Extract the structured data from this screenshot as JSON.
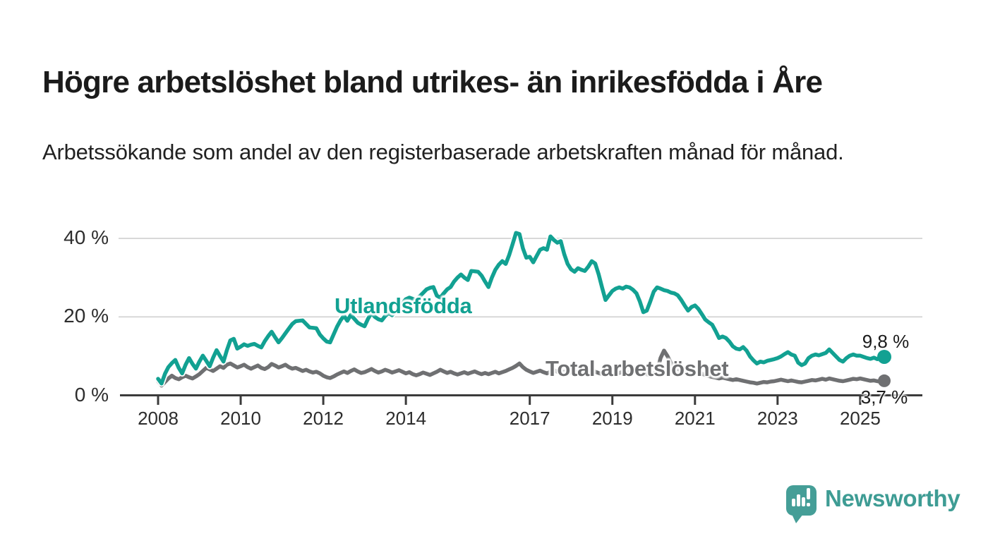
{
  "header": {
    "title": "Högre arbetslöshet bland utrikes- än inrikesfödda i Åre",
    "subtitle": "Arbetssökande som andel av den registerbaserade arbetskraften månad för månad."
  },
  "colors": {
    "accent_teal": "#12a192",
    "line_gray": "#6f7072",
    "grid": "#d8d8d8",
    "axis": "#3b3b3b",
    "tick_text": "#2d2d2d",
    "value_text": "#1a1a1a",
    "brand_teal": "#3e9c94",
    "badge_teal": "#459e97"
  },
  "chart_data": {
    "type": "line",
    "unit": "%",
    "x_domain": {
      "start": "2008-01",
      "end": "2025-08",
      "interval": "monthly"
    },
    "x_ticks": [
      2008,
      2010,
      2012,
      2014,
      2017,
      2019,
      2021,
      2023,
      2025
    ],
    "y_ticks": [
      {
        "value": 0,
        "label": "0 %"
      },
      {
        "value": 20,
        "label": "20 %"
      },
      {
        "value": 40,
        "label": "40 %"
      }
    ],
    "ylim": [
      0,
      44
    ],
    "grid": "horizontal",
    "legend_position": "inline-labels",
    "series": [
      {
        "name": "Utlandsfödda",
        "color": "#12a192",
        "end_label": "9,8 %",
        "last_value": 9.8,
        "values": [
          4.2,
          3.0,
          5.5,
          7.2,
          8.2,
          9.0,
          7.0,
          5.6,
          7.8,
          9.5,
          8.0,
          6.8,
          8.6,
          10.1,
          8.8,
          7.4,
          9.6,
          11.5,
          10.0,
          8.6,
          11.5,
          14.0,
          14.4,
          11.9,
          12.4,
          13.0,
          12.6,
          12.9,
          13.1,
          12.6,
          12.2,
          13.8,
          15.1,
          16.2,
          14.8,
          13.5,
          14.6,
          15.8,
          17.0,
          18.2,
          18.9,
          19.0,
          19.1,
          18.2,
          17.3,
          17.2,
          17.1,
          15.5,
          14.5,
          13.7,
          13.5,
          15.5,
          17.5,
          19.1,
          20.3,
          19.0,
          20.5,
          19.5,
          18.5,
          18.0,
          17.6,
          19.5,
          21.0,
          20.0,
          19.4,
          19.1,
          20.2,
          21.0,
          20.4,
          21.6,
          22.5,
          23.5,
          24.5,
          24.9,
          24.6,
          24.3,
          25.2,
          26.1,
          27.0,
          27.4,
          27.6,
          25.4,
          24.9,
          26.0,
          27.0,
          27.6,
          29.0,
          30.0,
          30.8,
          30.0,
          29.4,
          31.7,
          31.6,
          31.5,
          30.5,
          29.0,
          27.6,
          30.0,
          32.0,
          33.3,
          34.2,
          33.5,
          35.7,
          38.5,
          41.4,
          41.1,
          37.5,
          35.1,
          35.3,
          33.9,
          35.5,
          37.1,
          37.5,
          37.1,
          40.5,
          39.6,
          38.9,
          39.3,
          36.0,
          33.5,
          32.1,
          31.5,
          32.4,
          32.0,
          31.7,
          32.8,
          34.2,
          33.6,
          30.9,
          27.5,
          24.3,
          25.5,
          26.6,
          27.2,
          27.5,
          27.2,
          27.7,
          27.5,
          26.9,
          26.0,
          23.9,
          21.2,
          21.6,
          23.9,
          26.4,
          27.5,
          27.2,
          26.8,
          26.6,
          26.2,
          26.0,
          25.5,
          24.3,
          22.9,
          21.6,
          22.5,
          22.9,
          22.0,
          20.7,
          19.3,
          18.6,
          18.0,
          16.4,
          14.6,
          15.0,
          14.6,
          13.7,
          12.5,
          11.9,
          11.7,
          12.3,
          11.4,
          9.9,
          8.9,
          8.1,
          8.6,
          8.4,
          8.8,
          9.0,
          9.2,
          9.5,
          9.9,
          10.5,
          11.0,
          10.4,
          10.1,
          8.3,
          7.7,
          8.1,
          9.5,
          10.1,
          10.4,
          10.2,
          10.5,
          10.8,
          11.7,
          10.8,
          9.9,
          9.0,
          8.6,
          9.5,
          10.1,
          10.4,
          10.1,
          10.1,
          9.8,
          9.5,
          9.3,
          9.6,
          9.2,
          9.5,
          9.8
        ]
      },
      {
        "name": "Total arbetslöshet",
        "color": "#6f7072",
        "end_label": "3,7 %",
        "last_value": 3.7,
        "values": [
          3.6,
          2.5,
          3.4,
          4.3,
          5.0,
          4.4,
          4.1,
          4.6,
          5.0,
          4.6,
          4.3,
          4.8,
          5.4,
          6.2,
          7.0,
          6.6,
          6.2,
          6.8,
          7.4,
          7.0,
          7.8,
          8.1,
          7.6,
          7.1,
          7.4,
          7.8,
          7.2,
          6.8,
          7.2,
          7.6,
          7.0,
          6.7,
          7.2,
          8.0,
          7.6,
          7.1,
          7.4,
          7.8,
          7.2,
          6.8,
          7.0,
          6.6,
          6.2,
          6.5,
          6.1,
          5.8,
          6.0,
          5.6,
          5.0,
          4.6,
          4.4,
          4.8,
          5.3,
          5.7,
          6.1,
          5.7,
          6.2,
          6.6,
          6.1,
          5.7,
          5.9,
          6.3,
          6.7,
          6.2,
          5.8,
          6.1,
          6.5,
          6.2,
          5.8,
          6.1,
          6.4,
          6.0,
          5.6,
          5.9,
          5.4,
          5.1,
          5.4,
          5.8,
          5.5,
          5.2,
          5.6,
          6.0,
          6.5,
          6.1,
          5.7,
          6.0,
          5.6,
          5.3,
          5.6,
          5.9,
          5.5,
          5.8,
          6.1,
          5.7,
          5.4,
          5.7,
          5.4,
          5.7,
          6.0,
          5.6,
          5.9,
          6.2,
          6.6,
          7.0,
          7.5,
          8.1,
          7.2,
          6.5,
          6.1,
          5.7,
          6.0,
          6.3,
          5.9,
          5.6,
          6.0,
          6.4,
          6.0,
          5.7,
          6.0,
          5.6,
          5.9,
          6.2,
          5.8,
          5.5,
          5.8,
          6.1,
          6.4,
          6.0,
          5.7,
          5.4,
          5.7,
          6.0,
          6.3,
          6.0,
          5.7,
          6.0,
          5.6,
          5.9,
          6.2,
          5.8,
          5.5,
          5.8,
          5.4,
          5.1,
          5.6,
          6.0,
          9.5,
          11.4,
          10.0,
          8.3,
          7.2,
          6.7,
          6.3,
          6.0,
          5.8,
          6.0,
          6.1,
          5.8,
          5.5,
          5.2,
          4.9,
          4.7,
          4.5,
          4.3,
          4.5,
          4.3,
          4.1,
          3.9,
          4.1,
          3.9,
          3.7,
          3.5,
          3.3,
          3.2,
          3.0,
          3.2,
          3.4,
          3.3,
          3.5,
          3.6,
          3.8,
          4.0,
          3.8,
          3.6,
          3.8,
          3.6,
          3.4,
          3.3,
          3.5,
          3.7,
          3.9,
          3.8,
          4.0,
          4.2,
          4.0,
          4.3,
          4.1,
          3.9,
          3.7,
          3.6,
          3.8,
          4.0,
          4.2,
          4.1,
          4.3,
          4.1,
          3.9,
          3.7,
          3.8,
          3.6,
          3.5,
          3.7
        ]
      }
    ]
  },
  "footer": {
    "brand": "Newsworthy",
    "logo_icon": "newsworthy-speech-bubble-bar-chart"
  }
}
